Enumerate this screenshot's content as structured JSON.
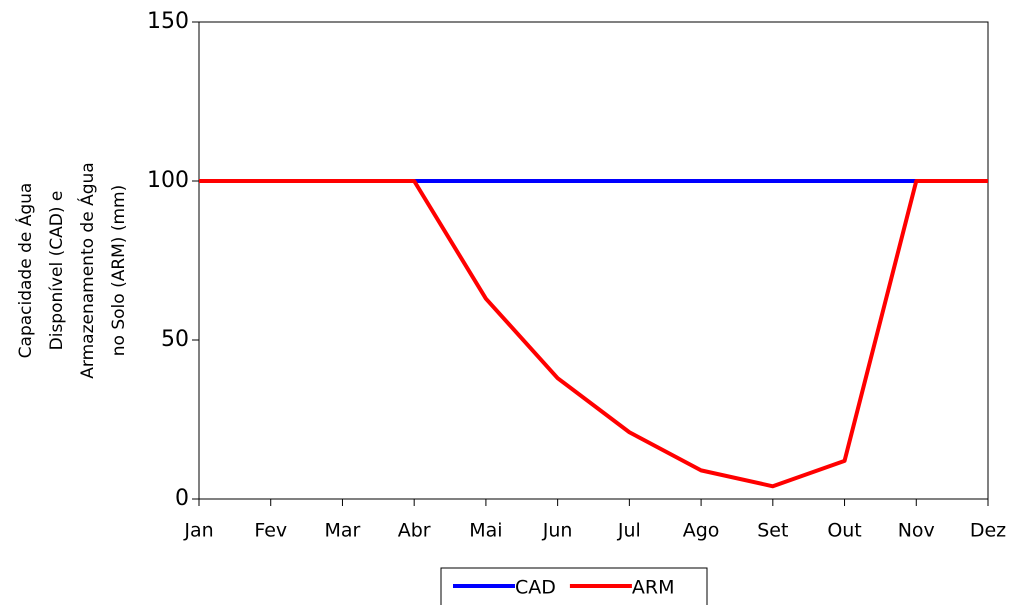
{
  "chart_data": {
    "type": "line",
    "ylabel": [
      "Capacidade de Água",
      "Disponível (CAD) e",
      "Armazenamento de Água",
      "no Solo (ARM) (mm)"
    ],
    "categories": [
      "Jan",
      "Fev",
      "Mar",
      "Abr",
      "Mai",
      "Jun",
      "Jul",
      "Ago",
      "Set",
      "Out",
      "Nov",
      "Dez"
    ],
    "series": [
      {
        "name": "CAD",
        "color": "#0000ff",
        "values": [
          100,
          100,
          100,
          100,
          100,
          100,
          100,
          100,
          100,
          100,
          100,
          100
        ]
      },
      {
        "name": "ARM",
        "color": "#ff0000",
        "values": [
          100,
          100,
          100,
          100,
          63,
          38,
          21,
          9,
          4,
          12,
          100,
          100
        ]
      }
    ],
    "ylim": [
      0,
      150
    ],
    "yticks": [
      0,
      50,
      100,
      150
    ],
    "legend": "bottom"
  }
}
